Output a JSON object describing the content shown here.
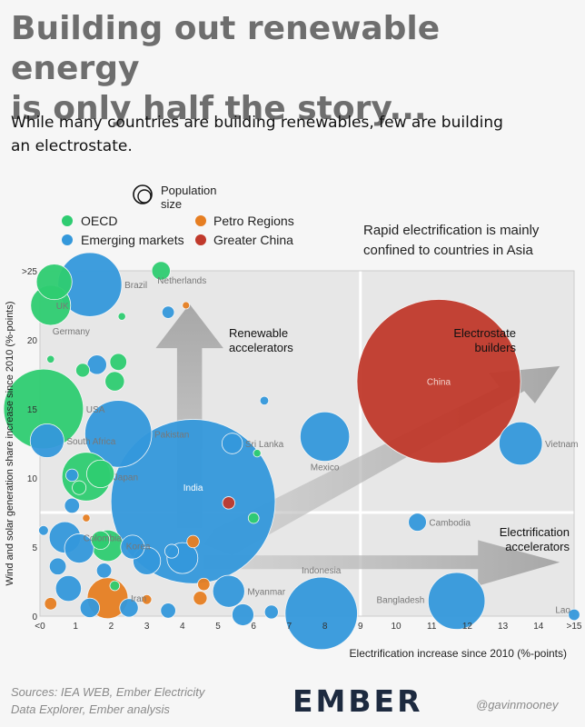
{
  "title_line1": "Building out renewable energy",
  "title_line2": "is only half the story...",
  "subtitle_line1": "While many countries are building renewables, few are building",
  "subtitle_line2": "an electrostate.",
  "footer": {
    "source_line1": "Sources: IEA WEB, Ember Electricity",
    "source_line2": "Data Explorer, Ember analysis",
    "logo": "EMBER",
    "handle": "@gavinmooney"
  },
  "chart_data": {
    "type": "scatter",
    "xlabel": "Electrification increase since 2010 (%-points)",
    "ylabel": "Wind and solar generation share increase since 2010 (%-points)",
    "xlim": [
      0,
      15
    ],
    "ylim": [
      0,
      25
    ],
    "x_ticks": [
      "<0",
      "1",
      "2",
      "3",
      "4",
      "5",
      "6",
      "7",
      "8",
      "9",
      "10",
      "11",
      "12",
      "13",
      "14",
      ">15"
    ],
    "y_ticks": [
      "0",
      "5",
      "10",
      "15",
      "20",
      ">25"
    ],
    "quadrant_divider_x": 9,
    "quadrant_divider_y": 7.5,
    "legend": {
      "size_label_line1": "Population",
      "size_label_line2": "size",
      "placement": "top-left",
      "entries": [
        {
          "name": "OECD",
          "color": "#2ecc71"
        },
        {
          "name": "Emerging markets",
          "color": "#3498db"
        },
        {
          "name": "Petro Regions",
          "color": "#e67e22"
        },
        {
          "name": "Greater China",
          "color": "#c0392b"
        }
      ]
    },
    "annotation_line1": "Rapid electrification is mainly",
    "annotation_line2": "confined to countries in Asia",
    "quadrant_labels": {
      "renewable_line1": "Renewable",
      "renewable_line2": "accelerators",
      "electrostate_line1": "Electrostate",
      "electrostate_line2": "builders",
      "electrification_line1": "Electrification",
      "electrification_line2": "accelerators"
    },
    "points": [
      {
        "label": "China",
        "x": 11.2,
        "y": 17,
        "group": "Greater China",
        "pop": 1410
      },
      {
        "label": "India",
        "x": 4.3,
        "y": 8.3,
        "group": "Emerging markets",
        "pop": 1420
      },
      {
        "label": "USA",
        "x": 0.1,
        "y": 15,
        "group": "OECD",
        "pop": 335
      },
      {
        "label": "Brazil",
        "x": 1.4,
        "y": 24,
        "group": "Emerging markets",
        "pop": 215
      },
      {
        "label": "Indonesia",
        "x": 7.9,
        "y": 0.2,
        "group": "Emerging markets",
        "pop": 275
      },
      {
        "label": "Pakistan",
        "x": 2.2,
        "y": 13.2,
        "group": "Emerging markets",
        "pop": 235
      },
      {
        "label": "Mexico",
        "x": 8.0,
        "y": 13,
        "group": "Emerging markets",
        "pop": 128
      },
      {
        "label": "Vietnam",
        "x": 13.5,
        "y": 12.5,
        "group": "Emerging markets",
        "pop": 98
      },
      {
        "label": "Bangladesh",
        "x": 11.7,
        "y": 1.1,
        "group": "Emerging markets",
        "pop": 170
      },
      {
        "label": "Cambodia",
        "x": 10.6,
        "y": 6.8,
        "group": "Emerging markets",
        "pop": 17
      },
      {
        "label": "Japan",
        "x": 1.3,
        "y": 10.1,
        "group": "OECD",
        "pop": 125
      },
      {
        "label": "Germany",
        "x": 0.3,
        "y": 22.5,
        "group": "OECD",
        "pop": 84
      },
      {
        "label": "UK",
        "x": 0.4,
        "y": 24.2,
        "group": "OECD",
        "pop": 67
      },
      {
        "label": "Netherlands",
        "x": 3.4,
        "y": 25,
        "group": "OECD",
        "pop": 18
      },
      {
        "label": "South Africa",
        "x": 0.2,
        "y": 12.7,
        "group": "Emerging markets",
        "pop": 60
      },
      {
        "label": "Sri Lanka",
        "x": 5.4,
        "y": 12.5,
        "group": "Emerging markets",
        "pop": 22
      },
      {
        "label": "Colombia",
        "x": 0.7,
        "y": 5.7,
        "group": "Emerging markets",
        "pop": 52
      },
      {
        "label": "Korea",
        "x": 1.9,
        "y": 5.1,
        "group": "OECD",
        "pop": 52
      },
      {
        "label": "Iran",
        "x": 1.9,
        "y": 1.3,
        "group": "Petro Regions",
        "pop": 88
      },
      {
        "label": "Myanmar",
        "x": 5.3,
        "y": 1.8,
        "group": "Emerging markets",
        "pop": 54
      },
      {
        "label": "Lao",
        "x": 15,
        "y": 0.1,
        "group": "Emerging markets",
        "pop": 7
      },
      {
        "label": "",
        "x": 1.6,
        "y": 18.2,
        "group": "Emerging markets",
        "pop": 20
      },
      {
        "label": "",
        "x": 1.2,
        "y": 17.8,
        "group": "OECD",
        "pop": 10
      },
      {
        "label": "",
        "x": 2.2,
        "y": 18.4,
        "group": "OECD",
        "pop": 15
      },
      {
        "label": "",
        "x": 2.1,
        "y": 17.0,
        "group": "OECD",
        "pop": 20
      },
      {
        "label": "",
        "x": 3.6,
        "y": 22.0,
        "group": "Emerging markets",
        "pop": 8
      },
      {
        "label": "",
        "x": 6.3,
        "y": 15.6,
        "group": "Emerging markets",
        "pop": 4
      },
      {
        "label": "",
        "x": 1.7,
        "y": 10.3,
        "group": "OECD",
        "pop": 40
      },
      {
        "label": "",
        "x": 0.9,
        "y": 10.2,
        "group": "Emerging markets",
        "pop": 8
      },
      {
        "label": "",
        "x": 1.1,
        "y": 9.3,
        "group": "OECD",
        "pop": 10
      },
      {
        "label": "",
        "x": 0.9,
        "y": 8.0,
        "group": "Emerging markets",
        "pop": 12
      },
      {
        "label": "",
        "x": 5.3,
        "y": 8.2,
        "group": "Greater China",
        "pop": 8
      },
      {
        "label": "",
        "x": 6.0,
        "y": 7.1,
        "group": "OECD",
        "pop": 6
      },
      {
        "label": "",
        "x": 6.1,
        "y": 11.8,
        "group": "OECD",
        "pop": 3
      },
      {
        "label": "",
        "x": 1.1,
        "y": 4.9,
        "group": "Emerging markets",
        "pop": 45
      },
      {
        "label": "",
        "x": 1.7,
        "y": 5.5,
        "group": "OECD",
        "pop": 18
      },
      {
        "label": "",
        "x": 2.6,
        "y": 5.0,
        "group": "Emerging markets",
        "pop": 30
      },
      {
        "label": "",
        "x": 3.0,
        "y": 4.0,
        "group": "Emerging markets",
        "pop": 40
      },
      {
        "label": "",
        "x": 3.7,
        "y": 4.7,
        "group": "Emerging markets",
        "pop": 10
      },
      {
        "label": "",
        "x": 4.3,
        "y": 5.4,
        "group": "Petro Regions",
        "pop": 8
      },
      {
        "label": "",
        "x": 4.0,
        "y": 4.2,
        "group": "Emerging markets",
        "pop": 50
      },
      {
        "label": "",
        "x": 0.5,
        "y": 3.6,
        "group": "Emerging markets",
        "pop": 15
      },
      {
        "label": "",
        "x": 1.8,
        "y": 3.3,
        "group": "Emerging markets",
        "pop": 12
      },
      {
        "label": "",
        "x": 0.8,
        "y": 2.0,
        "group": "Emerging markets",
        "pop": 35
      },
      {
        "label": "",
        "x": 1.4,
        "y": 0.6,
        "group": "Emerging markets",
        "pop": 20
      },
      {
        "label": "",
        "x": 2.5,
        "y": 0.6,
        "group": "Emerging markets",
        "pop": 18
      },
      {
        "label": "",
        "x": 3.6,
        "y": 0.4,
        "group": "Emerging markets",
        "pop": 12
      },
      {
        "label": "",
        "x": 4.6,
        "y": 2.3,
        "group": "Petro Regions",
        "pop": 8
      },
      {
        "label": "",
        "x": 4.5,
        "y": 1.3,
        "group": "Petro Regions",
        "pop": 10
      },
      {
        "label": "",
        "x": 3.0,
        "y": 1.2,
        "group": "Petro Regions",
        "pop": 5
      },
      {
        "label": "",
        "x": 0.3,
        "y": 0.9,
        "group": "Petro Regions",
        "pop": 8
      },
      {
        "label": "",
        "x": 5.7,
        "y": 0.1,
        "group": "Emerging markets",
        "pop": 25
      },
      {
        "label": "",
        "x": 6.5,
        "y": 0.3,
        "group": "Emerging markets",
        "pop": 10
      },
      {
        "label": "",
        "x": 2.1,
        "y": 2.2,
        "group": "OECD",
        "pop": 5
      },
      {
        "label": "",
        "x": 0.1,
        "y": 6.2,
        "group": "Emerging markets",
        "pop": 5
      },
      {
        "label": "",
        "x": 1.3,
        "y": 7.1,
        "group": "Petro Regions",
        "pop": 3
      },
      {
        "label": "",
        "x": 2.3,
        "y": 21.7,
        "group": "OECD",
        "pop": 3
      },
      {
        "label": "",
        "x": 0.3,
        "y": 18.6,
        "group": "OECD",
        "pop": 3
      },
      {
        "label": "",
        "x": 4.1,
        "y": 22.5,
        "group": "Petro Regions",
        "pop": 2
      }
    ]
  }
}
